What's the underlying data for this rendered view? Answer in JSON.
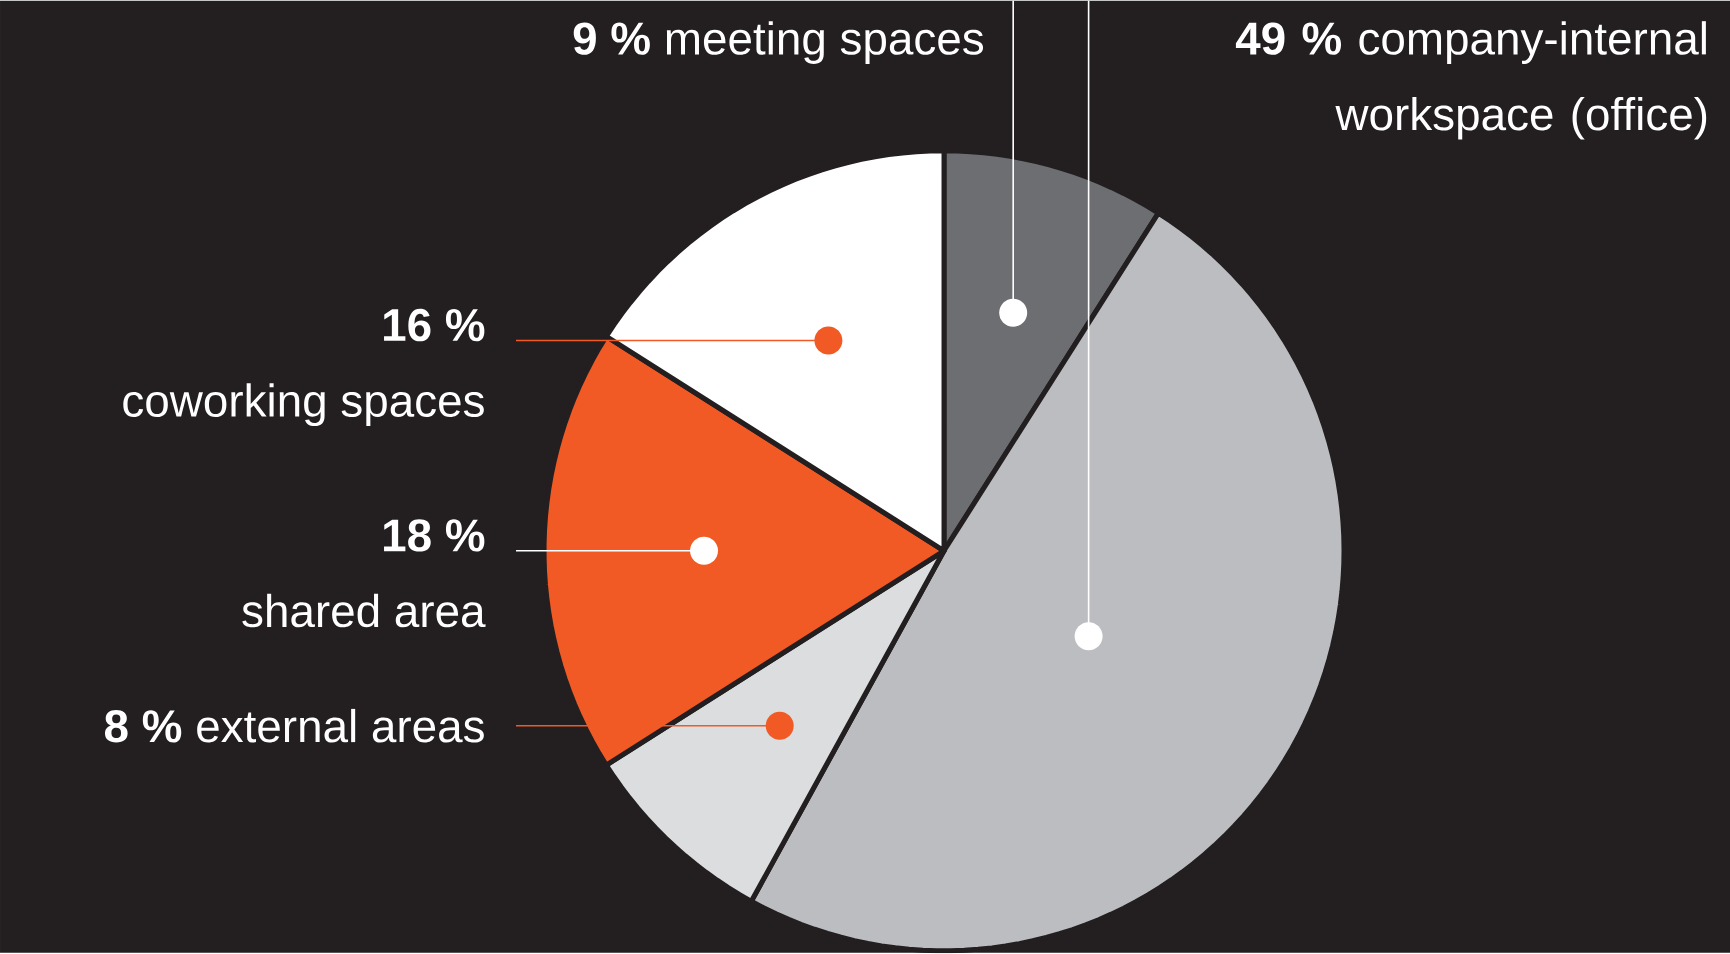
{
  "chart_data": {
    "type": "pie",
    "categories": [
      "meeting spaces",
      "company-internal workspace (office)",
      "external areas",
      "shared area",
      "coworking spaces"
    ],
    "values": [
      9,
      49,
      8,
      18,
      16
    ],
    "value_labels": [
      "9 %",
      "49 %",
      "8 %",
      "18 %",
      "16 %"
    ],
    "colors": [
      "#6d6e71",
      "#bcbdc0",
      "#dcdddf",
      "#f15a24",
      "#ffffff"
    ]
  }
}
